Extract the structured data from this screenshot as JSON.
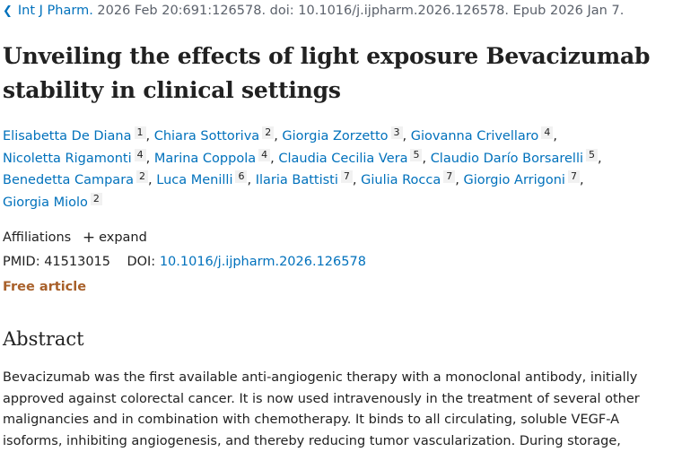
{
  "citation": {
    "journal": "Int J Pharm.",
    "details": "2026 Feb 20:691:126578. doi: 10.1016/j.ijpharm.2026.126578. Epub 2026 Jan 7."
  },
  "title_lines": [
    "Unveiling the effects of light exposure Bevacizumab",
    "stability in clinical settings"
  ],
  "authors": [
    {
      "name": "Elisabetta De Diana",
      "aff": "1"
    },
    {
      "name": "Chiara Sottoriva",
      "aff": "2"
    },
    {
      "name": "Giorgia Zorzetto",
      "aff": "3"
    },
    {
      "name": "Giovanna Crivellaro",
      "aff": "4"
    },
    {
      "name": "Nicoletta Rigamonti",
      "aff": "4"
    },
    {
      "name": "Marina Coppola",
      "aff": "4"
    },
    {
      "name": "Claudia Cecilia Vera",
      "aff": "5"
    },
    {
      "name": "Claudio Darío Borsarelli",
      "aff": "5"
    },
    {
      "name": "Benedetta Campara",
      "aff": "2"
    },
    {
      "name": "Luca Menilli",
      "aff": "6"
    },
    {
      "name": "Ilaria Battisti",
      "aff": "7"
    },
    {
      "name": "Giulia Rocca",
      "aff": "7"
    },
    {
      "name": "Giorgio Arrigoni",
      "aff": "7"
    },
    {
      "name": "Giorgia Miolo",
      "aff": "2"
    }
  ],
  "affiliations": {
    "label": "Affiliations",
    "expand_label": "expand"
  },
  "ids": {
    "pmid_label": "PMID:",
    "pmid": "41513015",
    "doi_label": "DOI:",
    "doi": "10.1016/j.ijpharm.2026.126578"
  },
  "free_label": "Free article",
  "abstract": {
    "heading": "Abstract",
    "lines": [
      "Bevacizumab was the first available anti-angiogenic therapy with a monoclonal antibody, initially",
      "approved against colorectal cancer. It is now used intravenously in the treatment of several other",
      "malignancies and in combination with chemotherapy. It binds to all circulating, soluble VEGF-A",
      "isoforms, inhibiting angiogenesis, and thereby reducing tumor vascularization. During storage,"
    ]
  },
  "colors": {
    "link": "#0071bc",
    "free_article": "#a8602a",
    "text": "#212121"
  },
  "icons": {
    "back": "chevron-left-icon",
    "expand": "plus-icon"
  }
}
